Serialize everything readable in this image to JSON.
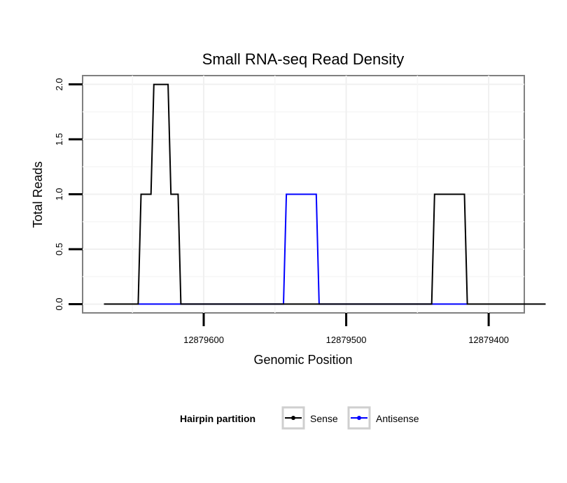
{
  "chart_data": {
    "type": "line",
    "title": "Small RNA-seq Read Density",
    "xlabel": "Genomic Position",
    "ylabel": "Total Reads",
    "x_reversed": true,
    "xlim": [
      12879685,
      12879375
    ],
    "ylim": [
      -0.08,
      2.08
    ],
    "xticks": [
      12879600,
      12879500,
      12879400
    ],
    "xtick_labels": [
      "12879600",
      "12879500",
      "12879400"
    ],
    "yticks": [
      0.0,
      0.5,
      1.0,
      1.5,
      2.0
    ],
    "ytick_labels": [
      "0.0",
      "0.5",
      "1.0",
      "1.5",
      "2.0"
    ],
    "grid": true,
    "legend_position": "bottom",
    "legend_title": "Hairpin partition",
    "series": [
      {
        "name": "Sense",
        "color": "#000000",
        "x": [
          12879670,
          12879646,
          12879644,
          12879637,
          12879635,
          12879625,
          12879623,
          12879618,
          12879616,
          12879544,
          12879542,
          12879440,
          12879438,
          12879417,
          12879415,
          12879360
        ],
        "y": [
          0,
          0,
          1,
          1,
          2,
          2,
          1,
          1,
          0,
          0,
          0,
          0,
          1,
          1,
          0,
          0
        ]
      },
      {
        "name": "Antisense",
        "color": "#0000ff",
        "x": [
          12879646,
          12879618,
          12879544,
          12879542,
          12879521,
          12879519,
          12879440,
          12879415
        ],
        "y": [
          0,
          0,
          0,
          1,
          1,
          0,
          0,
          0
        ]
      }
    ]
  }
}
